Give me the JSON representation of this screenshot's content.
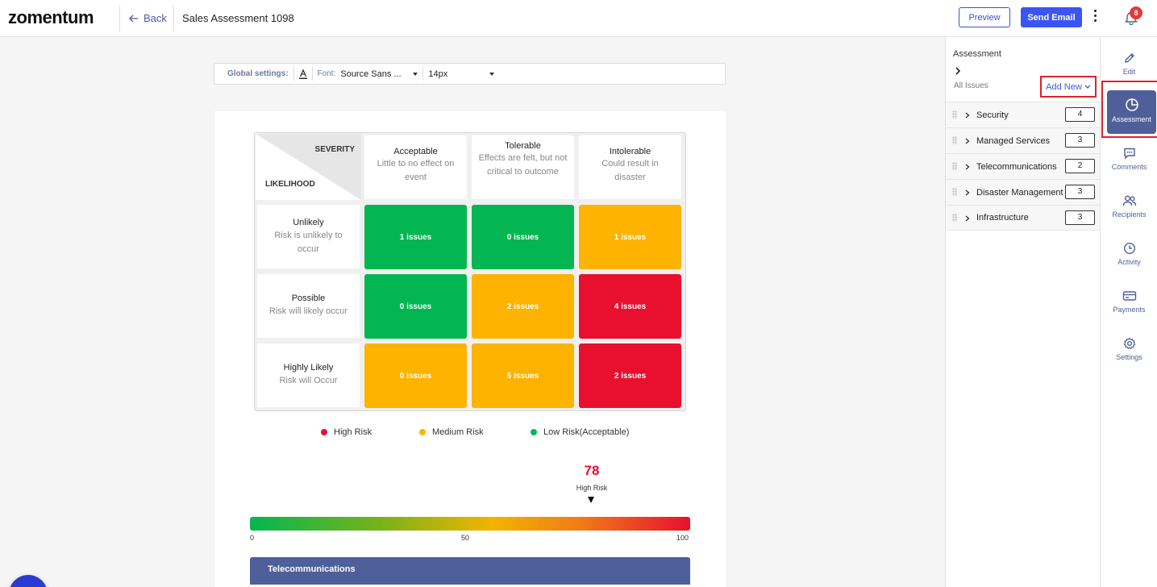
{
  "header": {
    "logo": "zomentum",
    "back_label": "Back",
    "doc_title": "Sales Assessment 1098",
    "preview_label": "Preview",
    "send_label": "Send Email",
    "notification_count": "8"
  },
  "global_settings": {
    "label": "Global settings:",
    "font_label": "Font:",
    "font_value": "Source Sans ...",
    "size_value": "14px"
  },
  "matrix": {
    "severity_label": "SEVERITY",
    "likelihood_label": "LIKELIHOOD",
    "columns": [
      {
        "title": "Acceptable",
        "desc": "Little to no effect on event"
      },
      {
        "title": "Tolerable",
        "desc": "Effects are felt, but not critical to outcome"
      },
      {
        "title": "Intolerable",
        "desc": "Could result in disaster"
      }
    ],
    "rows": [
      {
        "title": "Unlikely",
        "desc": "Risk is unlikely to occur",
        "cells": [
          "1 issues",
          "0 issues",
          "1 issues"
        ]
      },
      {
        "title": "Possible",
        "desc": "Risk will likely occur",
        "cells": [
          "0 issues",
          "2 issues",
          "4 issues"
        ]
      },
      {
        "title": "Highly Likely",
        "desc": "Risk will Occur",
        "cells": [
          "0 issues",
          "5 issues",
          "2 issues"
        ]
      }
    ],
    "colors": {
      "low": "#04b651",
      "medium": "#fdb300",
      "high": "#e8102e"
    }
  },
  "legend": {
    "high": "High Risk",
    "medium": "Medium Risk",
    "low": "Low Risk(Acceptable)"
  },
  "risk_score": {
    "value": "78",
    "label": "High Risk",
    "min": "0",
    "mid": "50",
    "max": "100"
  },
  "section": {
    "title": "Telecommunications"
  },
  "panel": {
    "title": "Assessment",
    "all_issues": "All Issues",
    "add_new": "Add New",
    "categories": [
      {
        "label": "Security",
        "count": "4"
      },
      {
        "label": "Managed Services",
        "count": "3"
      },
      {
        "label": "Telecommunications",
        "count": "2"
      },
      {
        "label": "Disaster Management",
        "count": "3"
      },
      {
        "label": "Infrastructure",
        "count": "3"
      }
    ]
  },
  "rail": {
    "edit": "Edit",
    "assessment": "Assessment",
    "comments": "Comments",
    "recipients": "Recipients",
    "activity": "Activity",
    "payments": "Payments",
    "settings": "Settings"
  }
}
